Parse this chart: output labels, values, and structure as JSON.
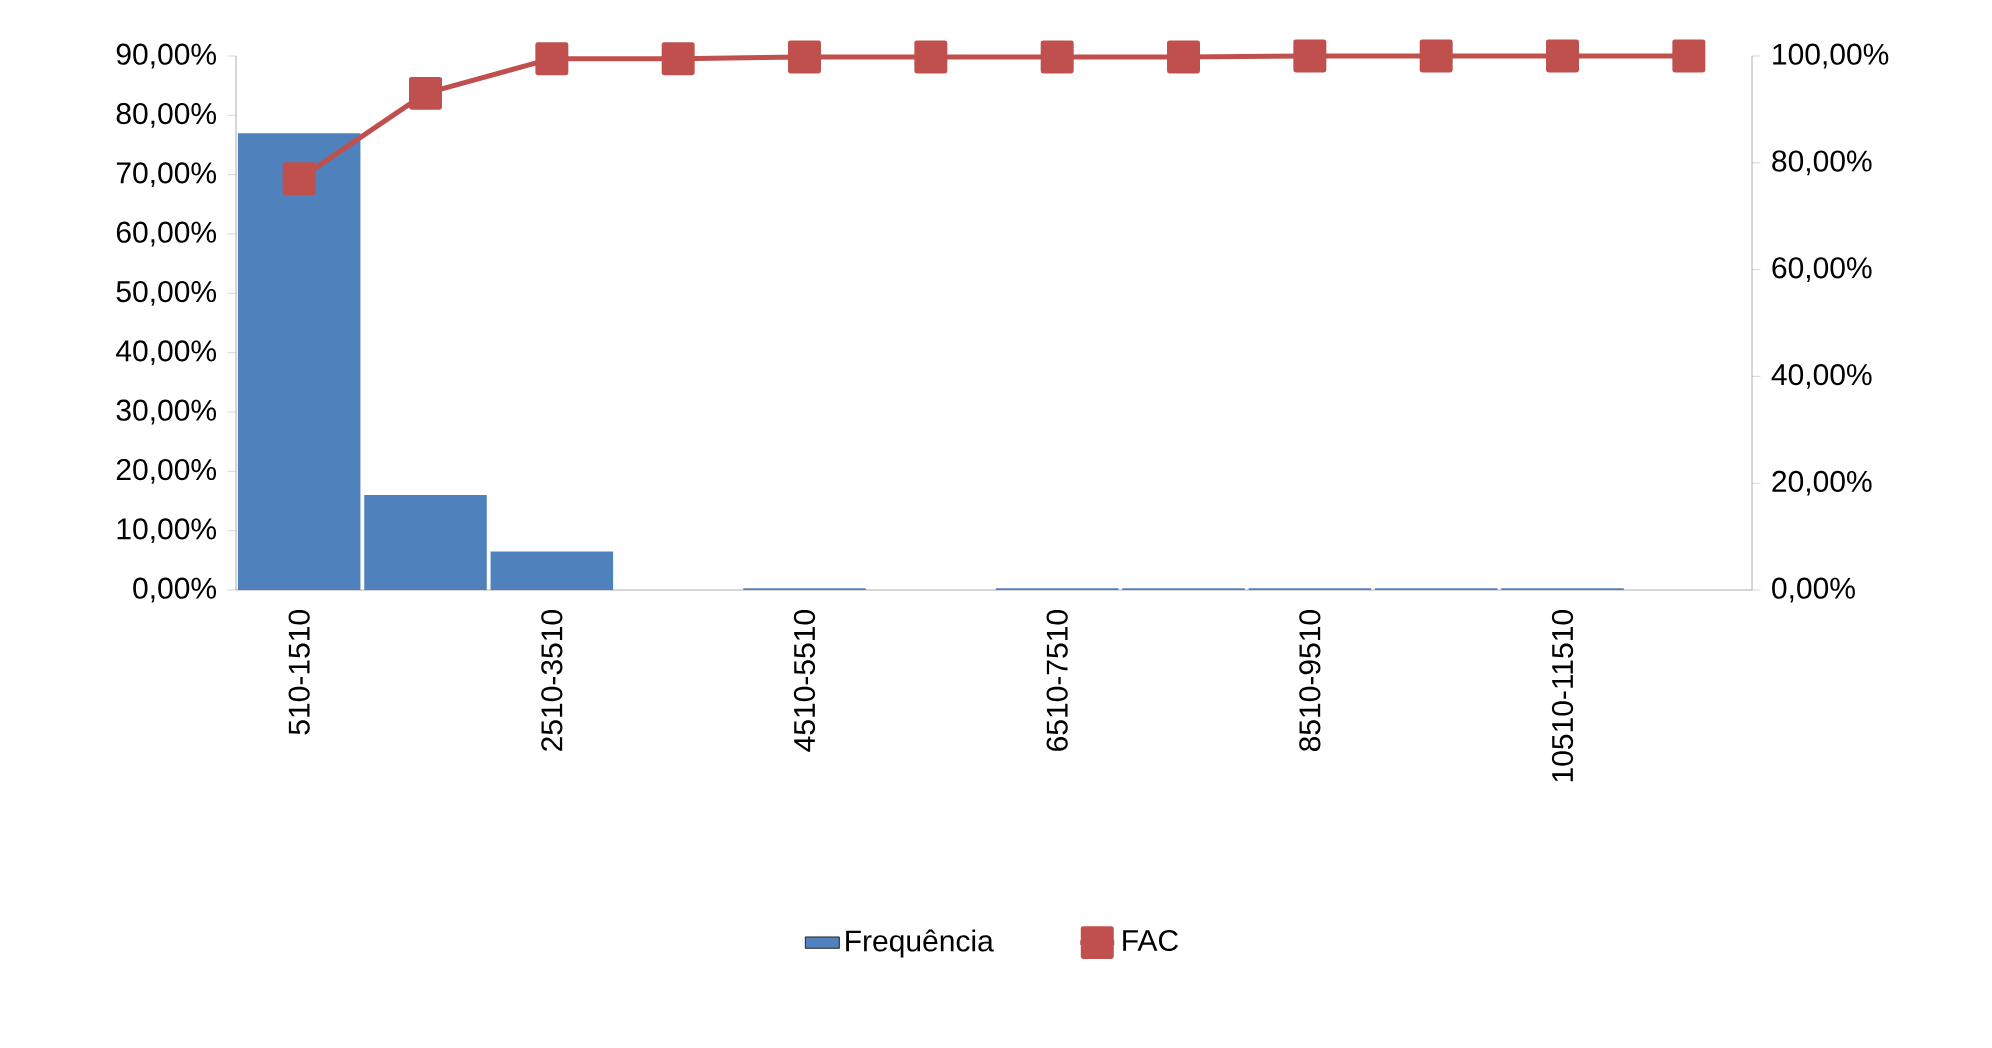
{
  "chart_data": {
    "type": "bar",
    "categories": [
      "510-1510",
      null,
      "2510-3510",
      null,
      "4510-5510",
      null,
      "6510-7510",
      null,
      "8510-9510",
      null,
      "10510-11510",
      null
    ],
    "series": [
      {
        "name": "Frequência",
        "type": "bar",
        "color": "#4f81bd",
        "values": [
          77,
          16,
          6.5,
          0,
          0.3,
          0,
          0.3,
          0.3,
          0.3,
          0.3,
          0.3,
          0
        ]
      },
      {
        "name": "FAC",
        "type": "line",
        "axis": "y2",
        "color": "#c0504d",
        "marker": "square",
        "values": [
          77,
          93,
          99.5,
          99.5,
          99.8,
          99.8,
          99.8,
          99.8,
          100,
          100,
          100,
          100
        ]
      }
    ],
    "ylim": [
      0,
      90
    ],
    "yticks": [
      {
        "value": 0,
        "label": "0,00%"
      },
      {
        "value": 10,
        "label": "10,00%"
      },
      {
        "value": 20,
        "label": "20,00%"
      },
      {
        "value": 30,
        "label": "30,00%"
      },
      {
        "value": 40,
        "label": "40,00%"
      },
      {
        "value": 50,
        "label": "50,00%"
      },
      {
        "value": 60,
        "label": "60,00%"
      },
      {
        "value": 70,
        "label": "70,00%"
      },
      {
        "value": 80,
        "label": "80,00%"
      },
      {
        "value": 90,
        "label": "90,00%"
      }
    ],
    "y2lim": [
      0,
      100
    ],
    "y2ticks": [
      {
        "value": 0,
        "label": "0,00%"
      },
      {
        "value": 20,
        "label": "20,00%"
      },
      {
        "value": 40,
        "label": "40,00%"
      },
      {
        "value": 60,
        "label": "60,00%"
      },
      {
        "value": 80,
        "label": "80,00%"
      },
      {
        "value": 100,
        "label": "100,00%"
      }
    ],
    "grid": false,
    "legend": "bottom"
  }
}
